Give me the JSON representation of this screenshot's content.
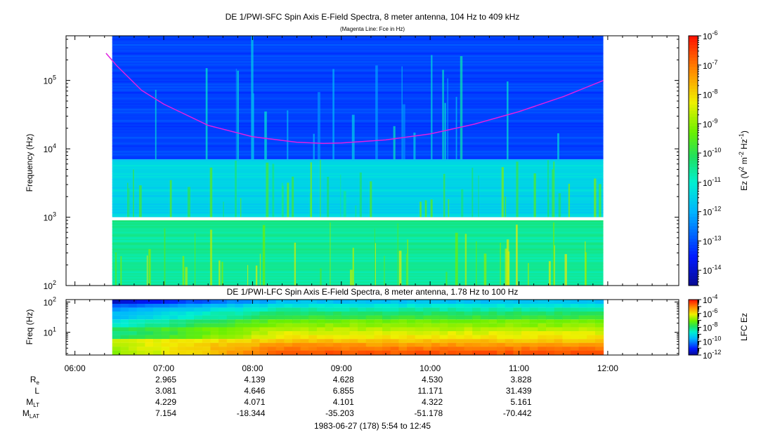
{
  "chart_data": [
    {
      "type": "heatmap",
      "title": "DE 1/PWI-SFC  Spin Axis E-Field Spectra, 8 meter antenna, 104 Hz to 409 kHz",
      "subtitle": "(Magenta Line: Fce in Hz)",
      "ylabel": "Frequency (Hz)",
      "y_scale": "log",
      "ylim_hz": [
        100,
        450000
      ],
      "y_ticks": [
        {
          "value": 100,
          "label": "10",
          "exp": "2"
        },
        {
          "value": 1000,
          "label": "10",
          "exp": "3"
        },
        {
          "value": 10000,
          "label": "10",
          "exp": "4"
        },
        {
          "value": 100000,
          "label": "10",
          "exp": "5"
        }
      ],
      "data_time_range_hr": [
        6.42,
        11.95
      ],
      "data_gap_freq_hz": [
        900,
        1000
      ],
      "colorbar": {
        "label": "Ez (V",
        "label_parts": [
          "Ez (V",
          "2",
          " m",
          "-2",
          " Hz",
          "-1",
          ")"
        ],
        "scale": "log",
        "range": [
          3e-15,
          1e-06
        ],
        "ticks": [
          {
            "value": 1e-06,
            "exp": "-6"
          },
          {
            "value": 1e-07,
            "exp": "-7"
          },
          {
            "value": 1e-08,
            "exp": "-8"
          },
          {
            "value": 1e-09,
            "exp": "-9"
          },
          {
            "value": 1e-10,
            "exp": "-10"
          },
          {
            "value": 1e-11,
            "exp": "-11"
          },
          {
            "value": 1e-12,
            "exp": "-12"
          },
          {
            "value": 1e-13,
            "exp": "-13"
          },
          {
            "value": 1e-14,
            "exp": "-14"
          }
        ]
      },
      "spectral_bands": [
        {
          "f_lo": 7000,
          "f_hi": 450000,
          "level_log10": -13.1
        },
        {
          "f_lo": 1000,
          "f_hi": 7000,
          "level_log10": -11.4
        },
        {
          "f_lo": 100,
          "f_hi": 900,
          "level_log10": -10.5
        }
      ],
      "series": [
        {
          "name": "Fce",
          "color": "#e020e0",
          "points": [
            {
              "t": 6.35,
              "f": 250000
            },
            {
              "t": 6.47,
              "f": 165000
            },
            {
              "t": 6.75,
              "f": 72000
            },
            {
              "t": 7.0,
              "f": 45000
            },
            {
              "t": 7.5,
              "f": 22000
            },
            {
              "t": 8.0,
              "f": 15000
            },
            {
              "t": 8.5,
              "f": 12500
            },
            {
              "t": 8.8,
              "f": 12000
            },
            {
              "t": 9.0,
              "f": 12200
            },
            {
              "t": 9.5,
              "f": 13500
            },
            {
              "t": 10.0,
              "f": 16500
            },
            {
              "t": 10.5,
              "f": 23000
            },
            {
              "t": 11.0,
              "f": 35000
            },
            {
              "t": 11.5,
              "f": 58000
            },
            {
              "t": 11.95,
              "f": 100000
            }
          ]
        }
      ]
    },
    {
      "type": "heatmap",
      "title": "DE 1/PWI-LFC  Spin Axis E-Field Spectra, 8 meter antenna, 1.78 Hz to 100 Hz",
      "ylabel": "Freq (Hz)",
      "y_scale": "log",
      "ylim_hz": [
        1.78,
        120
      ],
      "y_ticks": [
        {
          "value": 10,
          "label": "10",
          "exp": "1"
        },
        {
          "value": 100,
          "label": "10",
          "exp": "2"
        }
      ],
      "data_time_range_hr": [
        6.42,
        11.95
      ],
      "colorbar": {
        "label": "LFC Ez",
        "scale": "log",
        "range": [
          1e-12,
          0.0001
        ],
        "ticks": [
          {
            "value": 0.0001,
            "exp": "-4"
          },
          {
            "value": 1e-06,
            "exp": "-6"
          },
          {
            "value": 1e-08,
            "exp": "-8"
          },
          {
            "value": 1e-10,
            "exp": "-10"
          },
          {
            "value": 1e-12,
            "exp": "-12"
          }
        ]
      },
      "rows_log10_early_late": [
        {
          "f": 2.2,
          "early": -6.8,
          "late": -4.6
        },
        {
          "f": 2.9,
          "early": -6.6,
          "late": -4.9
        },
        {
          "f": 3.9,
          "early": -6.4,
          "late": -5.2
        },
        {
          "f": 5.2,
          "early": -6.3,
          "late": -5.6
        },
        {
          "f": 7.0,
          "early": -8.0,
          "late": -6.0
        },
        {
          "f": 9.4,
          "early": -8.2,
          "late": -6.2
        },
        {
          "f": 12.6,
          "early": -7.8,
          "late": -6.5
        },
        {
          "f": 17.0,
          "early": -8.6,
          "late": -6.8
        },
        {
          "f": 23.0,
          "early": -8.8,
          "late": -7.0
        },
        {
          "f": 31.0,
          "early": -9.4,
          "late": -7.6
        },
        {
          "f": 42.0,
          "early": -9.4,
          "late": -7.9
        },
        {
          "f": 56.0,
          "early": -9.8,
          "late": -8.3
        },
        {
          "f": 76.0,
          "early": -10.4,
          "late": -8.8
        },
        {
          "f": 100.0,
          "early": -11.5,
          "late": -9.4
        }
      ]
    }
  ],
  "x_axis": {
    "range_hr": [
      5.9,
      12.8
    ],
    "ticks": [
      {
        "hr": 6,
        "label": "06:00"
      },
      {
        "hr": 7,
        "label": "07:00"
      },
      {
        "hr": 8,
        "label": "08:00"
      },
      {
        "hr": 9,
        "label": "09:00"
      },
      {
        "hr": 10,
        "label": "10:00"
      },
      {
        "hr": 11,
        "label": "11:00"
      },
      {
        "hr": 12,
        "label": "12:00"
      }
    ]
  },
  "ephemeris": {
    "rows": [
      {
        "label": "R",
        "sub": "e",
        "values": [
          "2.965",
          "4.139",
          "4.628",
          "4.530",
          "3.828"
        ]
      },
      {
        "label": "L",
        "sub": "",
        "values": [
          "3.081",
          "4.646",
          "6.855",
          "11.171",
          "31.439"
        ]
      },
      {
        "label": "M",
        "sub": "LT",
        "values": [
          "4.229",
          "4.071",
          "4.101",
          "4.322",
          "5.161"
        ]
      },
      {
        "label": "M",
        "sub": "LAT",
        "values": [
          "7.154",
          "-18.344",
          "-35.203",
          "-51.178",
          "-70.442"
        ]
      }
    ],
    "at_hours": [
      7,
      8,
      9,
      10,
      11
    ]
  },
  "footer": "1983-06-27 (178) 5:54 to 12:45"
}
